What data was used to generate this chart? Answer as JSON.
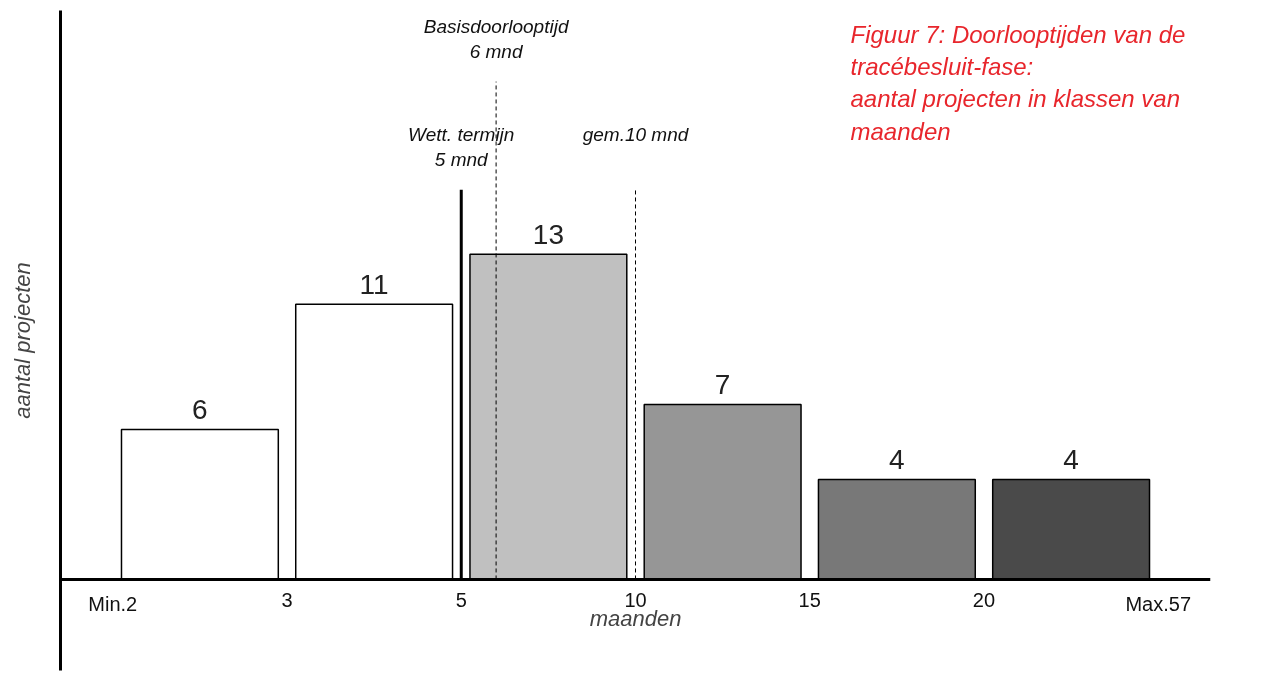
{
  "chart_data": {
    "type": "bar",
    "title": "Figuur 7: Doorlooptijden van de\ntracébesluit-fase:\naantal projecten in klassen van\nmaanden",
    "xlabel": "maanden",
    "ylabel": "aantal projecten",
    "categories": [
      null,
      null,
      null,
      null,
      null,
      null
    ],
    "values": [
      6,
      11,
      13,
      7,
      4,
      4
    ],
    "colors": [
      "#ffffff",
      "#ffffff",
      "#c0c0c0",
      "#969696",
      "#787878",
      "#4a4a4a"
    ],
    "data_labels": true,
    "tick_labels": false,
    "grid": false,
    "annotations": [
      "Min.2",
      "3",
      "5",
      "10",
      "15",
      "20",
      "Max.57",
      "Wett. termijn\n5 mnd",
      "Basisdoorlooptijd\n6 mnd",
      "gem.10 mnd"
    ]
  }
}
